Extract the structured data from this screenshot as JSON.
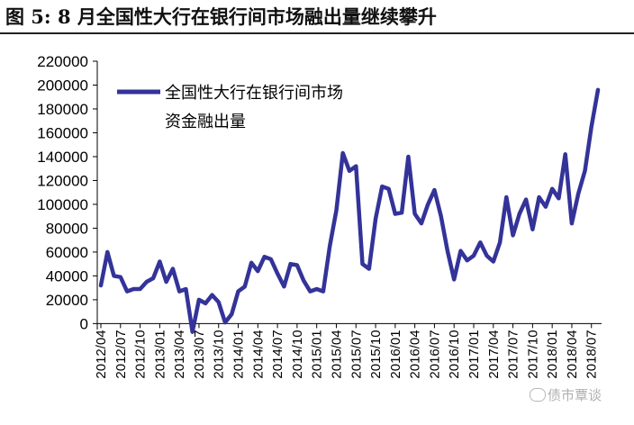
{
  "figure": {
    "title": "图 5:  8 月全国性大行在银行间市场融出量继续攀升",
    "watermark": "债市覃谈"
  },
  "chart_data": {
    "type": "line",
    "title": "",
    "xlabel": "",
    "ylabel": "",
    "ylim": [
      -5000,
      220000
    ],
    "yticks": [
      0,
      20000,
      40000,
      60000,
      80000,
      100000,
      120000,
      140000,
      160000,
      180000,
      200000,
      220000
    ],
    "xticks": [
      "2012/04",
      "2012/07",
      "2012/10",
      "2013/01",
      "2013/04",
      "2013/07",
      "2013/10",
      "2014/01",
      "2014/04",
      "2014/07",
      "2014/10",
      "2015/01",
      "2015/04",
      "2015/07",
      "2015/10",
      "2016/01",
      "2016/04",
      "2016/07",
      "2016/10",
      "2017/01",
      "2017/04",
      "2017/07",
      "2017/10",
      "2018/01",
      "2018/04",
      "2018/07"
    ],
    "grid": false,
    "legend_position": "top-left",
    "series": [
      {
        "name": "全国性大行在银行间市场资金融出量",
        "color": "#333399",
        "x": [
          "2012/04",
          "2012/05",
          "2012/06",
          "2012/07",
          "2012/08",
          "2012/09",
          "2012/10",
          "2012/11",
          "2012/12",
          "2013/01",
          "2013/02",
          "2013/03",
          "2013/04",
          "2013/05",
          "2013/06",
          "2013/07",
          "2013/08",
          "2013/09",
          "2013/10",
          "2013/11",
          "2013/12",
          "2014/01",
          "2014/02",
          "2014/03",
          "2014/04",
          "2014/05",
          "2014/06",
          "2014/07",
          "2014/08",
          "2014/09",
          "2014/10",
          "2014/11",
          "2014/12",
          "2015/01",
          "2015/02",
          "2015/03",
          "2015/04",
          "2015/05",
          "2015/06",
          "2015/07",
          "2015/08",
          "2015/09",
          "2015/10",
          "2015/11",
          "2015/12",
          "2016/01",
          "2016/02",
          "2016/03",
          "2016/04",
          "2016/05",
          "2016/06",
          "2016/07",
          "2016/08",
          "2016/09",
          "2016/10",
          "2016/11",
          "2016/12",
          "2017/01",
          "2017/02",
          "2017/03",
          "2017/04",
          "2017/05",
          "2017/06",
          "2017/07",
          "2017/08",
          "2017/09",
          "2017/10",
          "2017/11",
          "2017/12",
          "2018/01",
          "2018/02",
          "2018/03",
          "2018/04",
          "2018/05",
          "2018/06",
          "2018/07",
          "2018/08"
        ],
        "values": [
          32000,
          60000,
          40000,
          39000,
          27000,
          29000,
          29000,
          35000,
          38000,
          52000,
          35000,
          46000,
          27000,
          29000,
          -7000,
          20000,
          17000,
          24000,
          18000,
          1000,
          8000,
          27000,
          31000,
          51000,
          44000,
          56000,
          54000,
          42000,
          31000,
          50000,
          49000,
          36000,
          27000,
          29000,
          27000,
          65000,
          95000,
          143000,
          128000,
          132000,
          50000,
          46000,
          88000,
          115000,
          113000,
          92000,
          93000,
          140000,
          92000,
          84000,
          100000,
          112000,
          90000,
          61000,
          37000,
          61000,
          53000,
          57000,
          68000,
          57000,
          52000,
          68000,
          106000,
          74000,
          92000,
          104000,
          79000,
          106000,
          98000,
          113000,
          105000,
          142000,
          84000,
          109000,
          128000,
          165000,
          196000
        ]
      }
    ]
  }
}
